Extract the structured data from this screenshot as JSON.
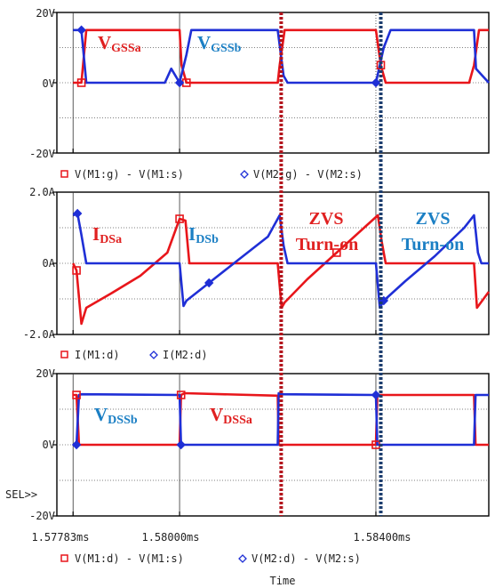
{
  "colors": {
    "red": "#e8161b",
    "blue": "#1f2fd6",
    "dark_red": "#b3141c",
    "navy": "#1c3d6e",
    "ann_red": "#e02020",
    "ann_blue": "#1b7fc4"
  },
  "chart_data": [
    {
      "type": "line",
      "panel": "gate-source voltage",
      "ylim": [
        -20,
        20
      ],
      "yticks": [
        "20V",
        "0V",
        "-20V"
      ],
      "legend": [
        "V(M1:g) - V(M1:s)",
        "V(M2:g) - V(M2:s)"
      ],
      "series": [
        {
          "name": "V(M1:g) - V(M1:s)",
          "x_ms": [
            1.57783,
            1.578,
            1.5781,
            1.58,
            1.58004,
            1.58014,
            1.582,
            1.58204,
            1.58214,
            1.584,
            1.5841,
            1.5842,
            1.5859,
            1.586,
            1.5861,
            1.5863
          ],
          "y": [
            0,
            0,
            15,
            15,
            5,
            0,
            0,
            5,
            15,
            15,
            5,
            0,
            0,
            5,
            15,
            15
          ]
        },
        {
          "name": "V(M2:g) - V(M2:s)",
          "x_ms": [
            1.57783,
            1.578,
            1.5781,
            1.5797,
            1.57983,
            1.58,
            1.58014,
            1.58024,
            1.582,
            1.58212,
            1.5822,
            1.584,
            1.58416,
            1.5843,
            1.586,
            1.58604,
            1.5863
          ],
          "y": [
            15,
            15,
            0,
            0,
            4,
            0,
            8,
            15,
            15,
            2,
            0,
            0,
            10,
            15,
            15,
            4,
            0
          ]
        }
      ]
    },
    {
      "type": "line",
      "panel": "drain current",
      "ylim": [
        -2.0,
        2.0
      ],
      "yticks": [
        "2.0A",
        "0A",
        "-2.0A"
      ],
      "legend": [
        "I(M1:d)",
        "I(M2:d)"
      ],
      "series": [
        {
          "name": "I(M1:d)",
          "x_ms": [
            1.57783,
            1.5779,
            1.578,
            1.5781,
            1.5786,
            1.5792,
            1.57975,
            1.58,
            1.58012,
            1.5802,
            1.582,
            1.58208,
            1.58214,
            1.5826,
            1.5832,
            1.5838,
            1.58404,
            1.58412,
            1.5842,
            1.586,
            1.58606,
            1.5863
          ],
          "y": [
            0,
            -0.2,
            -1.7,
            -1.25,
            -0.85,
            -0.35,
            0.3,
            1.25,
            1.2,
            0,
            0,
            -1.25,
            -1.1,
            -0.45,
            0.3,
            1.05,
            1.35,
            0.6,
            0,
            0,
            -1.25,
            -0.8
          ]
        },
        {
          "name": "I(M2:d)",
          "x_ms": [
            1.57783,
            1.57792,
            1.578,
            1.5781,
            1.58,
            1.58008,
            1.58014,
            1.5806,
            1.5812,
            1.5818,
            1.58204,
            1.58212,
            1.5822,
            1.584,
            1.58408,
            1.58416,
            1.5846,
            1.5852,
            1.5858,
            1.586,
            1.58608,
            1.58615,
            1.5863
          ],
          "y": [
            1.35,
            1.4,
            0.8,
            0,
            0,
            -1.2,
            -1.05,
            -0.55,
            0.1,
            0.75,
            1.35,
            0.5,
            0,
            0,
            -1.25,
            -1.05,
            -0.5,
            0.2,
            1.0,
            1.35,
            0.3,
            0,
            0
          ]
        }
      ]
    },
    {
      "type": "line",
      "panel": "drain-source voltage",
      "ylim": [
        -20,
        20
      ],
      "yticks": [
        "20V",
        "0V",
        "-20V"
      ],
      "legend": [
        "V(M1:d) - V(M1:s)",
        "V(M2:d) - V(M2:s)"
      ],
      "series": [
        {
          "name": "V(M1:d) - V(M1:s)",
          "x_ms": [
            1.57783,
            1.5779,
            1.57795,
            1.578,
            1.58,
            1.58003,
            1.5801,
            1.582,
            1.58202,
            1.58205,
            1.584,
            1.58403,
            1.5841,
            1.586,
            1.58603,
            1.5863
          ],
          "y": [
            14,
            14,
            0,
            0,
            0,
            14,
            14.5,
            13.8,
            0,
            0,
            0,
            14,
            14,
            14,
            0,
            0
          ]
        },
        {
          "name": "V(M2:d) - V(M2:s)",
          "x_ms": [
            1.57783,
            1.5779,
            1.57795,
            1.578,
            1.58,
            1.58003,
            1.5801,
            1.582,
            1.58202,
            1.58205,
            1.584,
            1.58403,
            1.5841,
            1.586,
            1.58603,
            1.5863
          ],
          "y": [
            0,
            0,
            14,
            14.2,
            14,
            0,
            0,
            0,
            14.5,
            14.2,
            14,
            0,
            0,
            0,
            14,
            14
          ]
        }
      ]
    }
  ],
  "xaxis": {
    "xlim_ms": [
      1.5775,
      1.5863
    ],
    "tick_labels": [
      "1.57783ms",
      "1.58000ms",
      "1.58400ms"
    ],
    "tick_values_ms": [
      1.57783,
      1.58,
      1.584
    ],
    "label": "Time"
  },
  "labels": {
    "vgssa_main": "V",
    "vgssa_sub": "GSSa",
    "vgssb_main": "V",
    "vgssb_sub": "GSSb",
    "idsa_main": "I",
    "idsa_sub": "DSa",
    "idsb_main": "I",
    "idsb_sub": "DSb",
    "zvs1_line1": "ZVS",
    "zvs1_line2": "Turn-on",
    "zvs2_line1": "ZVS",
    "zvs2_line2": "Turn-on",
    "vdssb_main": "V",
    "vdssb_sub": "DSSb",
    "vdssa_main": "V",
    "vdssa_sub": "DSSa",
    "sel": "SEL>>"
  },
  "markers": {
    "zvs_lines_ms": [
      1.58207,
      1.5841
    ]
  }
}
